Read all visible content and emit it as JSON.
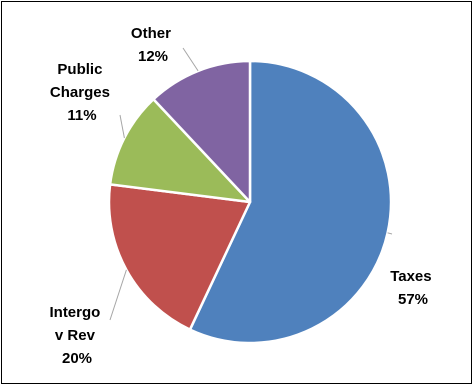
{
  "chart_data": {
    "type": "pie",
    "title": "",
    "slices": [
      {
        "key": "taxes",
        "label_lines": [
          "Taxes"
        ],
        "value": 57,
        "value_label": "57%",
        "color": "#4F81BD"
      },
      {
        "key": "intergov",
        "label_lines": [
          "Intergo",
          "v Rev"
        ],
        "value": 20,
        "value_label": "20%",
        "color": "#C0504D"
      },
      {
        "key": "public",
        "label_lines": [
          "Public",
          "Charges"
        ],
        "value": 11,
        "value_label": "11%",
        "color": "#9BBB59"
      },
      {
        "key": "other",
        "label_lines": [
          "Other"
        ],
        "value": 12,
        "value_label": "12%",
        "color": "#8064A2"
      }
    ],
    "legend": "none",
    "data_labels": "outside-with-leader-lines"
  }
}
